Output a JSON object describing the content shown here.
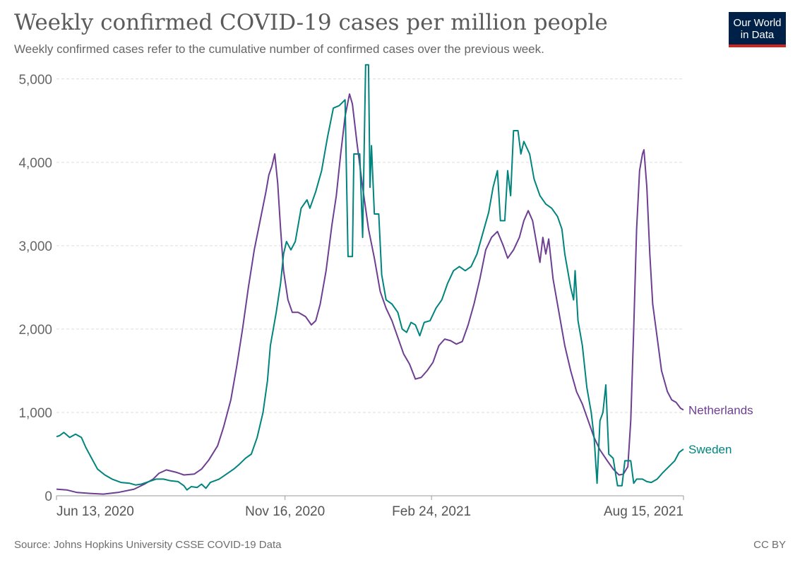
{
  "header": {
    "title": "Weekly confirmed COVID-19 cases per million people",
    "subtitle": "Weekly confirmed cases refer to the cumulative number of confirmed cases over the previous week."
  },
  "logo": {
    "line1": "Our World",
    "line2": "in Data",
    "bg": "#002147",
    "accent": "#ce261e"
  },
  "footer": {
    "source": "Source: Johns Hopkins University CSSE COVID-19 Data",
    "license": "CC BY"
  },
  "chart_data": {
    "type": "line",
    "title": "Weekly confirmed COVID-19 cases per million people",
    "x_range": [
      "2020-06-13",
      "2021-08-15"
    ],
    "ylim": [
      0,
      5100
    ],
    "yticks": [
      0,
      1000,
      2000,
      3000,
      4000,
      5000
    ],
    "ytick_labels": [
      "0",
      "1,000",
      "2,000",
      "3,000",
      "4,000",
      "5,000"
    ],
    "xticks": [
      "2020-06-13",
      "2020-11-16",
      "2021-02-24",
      "2021-08-15"
    ],
    "xtick_labels": [
      "Jun 13, 2020",
      "Nov 16, 2020",
      "Feb 24, 2021",
      "Aug 15, 2021"
    ],
    "grid": "horizontal dashed",
    "legend": "line-end labels",
    "series": [
      {
        "name": "Netherlands",
        "color": "#6d3e91",
        "points": [
          [
            "2020-06-13",
            80
          ],
          [
            "2020-06-20",
            70
          ],
          [
            "2020-06-27",
            40
          ],
          [
            "2020-07-05",
            30
          ],
          [
            "2020-07-15",
            20
          ],
          [
            "2020-07-25",
            40
          ],
          [
            "2020-08-05",
            80
          ],
          [
            "2020-08-12",
            140
          ],
          [
            "2020-08-18",
            200
          ],
          [
            "2020-08-22",
            270
          ],
          [
            "2020-08-27",
            310
          ],
          [
            "2020-09-03",
            280
          ],
          [
            "2020-09-08",
            250
          ],
          [
            "2020-09-15",
            260
          ],
          [
            "2020-09-20",
            320
          ],
          [
            "2020-09-25",
            430
          ],
          [
            "2020-10-01",
            600
          ],
          [
            "2020-10-05",
            820
          ],
          [
            "2020-10-10",
            1150
          ],
          [
            "2020-10-14",
            1550
          ],
          [
            "2020-10-18",
            2000
          ],
          [
            "2020-10-22",
            2500
          ],
          [
            "2020-10-26",
            2950
          ],
          [
            "2020-10-30",
            3300
          ],
          [
            "2020-11-03",
            3650
          ],
          [
            "2020-11-05",
            3850
          ],
          [
            "2020-11-07",
            3950
          ],
          [
            "2020-11-09",
            4100
          ],
          [
            "2020-11-11",
            3750
          ],
          [
            "2020-11-13",
            3200
          ],
          [
            "2020-11-15",
            2700
          ],
          [
            "2020-11-18",
            2350
          ],
          [
            "2020-11-21",
            2200
          ],
          [
            "2020-11-25",
            2200
          ],
          [
            "2020-11-30",
            2150
          ],
          [
            "2020-12-04",
            2050
          ],
          [
            "2020-12-07",
            2100
          ],
          [
            "2020-12-10",
            2300
          ],
          [
            "2020-12-14",
            2700
          ],
          [
            "2020-12-18",
            3250
          ],
          [
            "2020-12-21",
            3600
          ],
          [
            "2020-12-24",
            4100
          ],
          [
            "2020-12-27",
            4550
          ],
          [
            "2020-12-30",
            4820
          ],
          [
            "2021-01-01",
            4700
          ],
          [
            "2021-01-04",
            4250
          ],
          [
            "2021-01-08",
            3700
          ],
          [
            "2021-01-12",
            3200
          ],
          [
            "2021-01-16",
            2850
          ],
          [
            "2021-01-20",
            2450
          ],
          [
            "2021-01-24",
            2250
          ],
          [
            "2021-01-28",
            2100
          ],
          [
            "2021-02-01",
            1900
          ],
          [
            "2021-02-05",
            1700
          ],
          [
            "2021-02-09",
            1580
          ],
          [
            "2021-02-13",
            1400
          ],
          [
            "2021-02-17",
            1420
          ],
          [
            "2021-02-21",
            1500
          ],
          [
            "2021-02-25",
            1600
          ],
          [
            "2021-03-01",
            1800
          ],
          [
            "2021-03-05",
            1880
          ],
          [
            "2021-03-09",
            1860
          ],
          [
            "2021-03-13",
            1820
          ],
          [
            "2021-03-17",
            1850
          ],
          [
            "2021-03-21",
            2050
          ],
          [
            "2021-03-25",
            2300
          ],
          [
            "2021-03-29",
            2600
          ],
          [
            "2021-04-02",
            2950
          ],
          [
            "2021-04-06",
            3100
          ],
          [
            "2021-04-10",
            3170
          ],
          [
            "2021-04-14",
            3000
          ],
          [
            "2021-04-17",
            2850
          ],
          [
            "2021-04-21",
            2950
          ],
          [
            "2021-04-25",
            3100
          ],
          [
            "2021-04-28",
            3300
          ],
          [
            "2021-05-01",
            3420
          ],
          [
            "2021-05-04",
            3300
          ],
          [
            "2021-05-07",
            3000
          ],
          [
            "2021-05-09",
            2800
          ],
          [
            "2021-05-11",
            3100
          ],
          [
            "2021-05-13",
            2900
          ],
          [
            "2021-05-15",
            3080
          ],
          [
            "2021-05-18",
            2600
          ],
          [
            "2021-05-22",
            2200
          ],
          [
            "2021-05-26",
            1800
          ],
          [
            "2021-05-30",
            1500
          ],
          [
            "2021-06-03",
            1250
          ],
          [
            "2021-06-07",
            1100
          ],
          [
            "2021-06-11",
            900
          ],
          [
            "2021-06-15",
            700
          ],
          [
            "2021-06-19",
            550
          ],
          [
            "2021-06-24",
            420
          ],
          [
            "2021-06-28",
            320
          ],
          [
            "2021-07-02",
            250
          ],
          [
            "2021-07-05",
            260
          ],
          [
            "2021-07-08",
            350
          ],
          [
            "2021-07-10",
            900
          ],
          [
            "2021-07-12",
            2000
          ],
          [
            "2021-07-14",
            3200
          ],
          [
            "2021-07-16",
            3900
          ],
          [
            "2021-07-18",
            4100
          ],
          [
            "2021-07-19",
            4150
          ],
          [
            "2021-07-21",
            3700
          ],
          [
            "2021-07-23",
            2900
          ],
          [
            "2021-07-25",
            2300
          ],
          [
            "2021-07-28",
            1900
          ],
          [
            "2021-07-31",
            1500
          ],
          [
            "2021-08-04",
            1250
          ],
          [
            "2021-08-07",
            1150
          ],
          [
            "2021-08-10",
            1120
          ],
          [
            "2021-08-13",
            1050
          ],
          [
            "2021-08-15",
            1030
          ]
        ]
      },
      {
        "name": "Sweden",
        "color": "#00847e",
        "points": [
          [
            "2020-06-13",
            710
          ],
          [
            "2020-06-15",
            720
          ],
          [
            "2020-06-18",
            760
          ],
          [
            "2020-06-22",
            700
          ],
          [
            "2020-06-26",
            740
          ],
          [
            "2020-06-30",
            700
          ],
          [
            "2020-07-03",
            580
          ],
          [
            "2020-07-07",
            450
          ],
          [
            "2020-07-11",
            320
          ],
          [
            "2020-07-16",
            250
          ],
          [
            "2020-07-21",
            200
          ],
          [
            "2020-07-27",
            160
          ],
          [
            "2020-08-02",
            150
          ],
          [
            "2020-08-06",
            130
          ],
          [
            "2020-08-10",
            140
          ],
          [
            "2020-08-15",
            170
          ],
          [
            "2020-08-20",
            200
          ],
          [
            "2020-08-25",
            200
          ],
          [
            "2020-08-30",
            180
          ],
          [
            "2020-09-04",
            170
          ],
          [
            "2020-09-08",
            120
          ],
          [
            "2020-09-10",
            70
          ],
          [
            "2020-09-13",
            110
          ],
          [
            "2020-09-17",
            100
          ],
          [
            "2020-09-20",
            140
          ],
          [
            "2020-09-23",
            90
          ],
          [
            "2020-09-26",
            160
          ],
          [
            "2020-10-02",
            200
          ],
          [
            "2020-10-07",
            260
          ],
          [
            "2020-10-12",
            320
          ],
          [
            "2020-10-16",
            380
          ],
          [
            "2020-10-20",
            450
          ],
          [
            "2020-10-24",
            500
          ],
          [
            "2020-10-28",
            700
          ],
          [
            "2020-11-01",
            1000
          ],
          [
            "2020-11-04",
            1380
          ],
          [
            "2020-11-06",
            1800
          ],
          [
            "2020-11-10",
            2200
          ],
          [
            "2020-11-13",
            2550
          ],
          [
            "2020-11-15",
            2900
          ],
          [
            "2020-11-17",
            3050
          ],
          [
            "2020-11-20",
            2950
          ],
          [
            "2020-11-23",
            3050
          ],
          [
            "2020-11-27",
            3450
          ],
          [
            "2020-12-01",
            3550
          ],
          [
            "2020-12-03",
            3450
          ],
          [
            "2020-12-07",
            3650
          ],
          [
            "2020-12-11",
            3900
          ],
          [
            "2020-12-15",
            4300
          ],
          [
            "2020-12-19",
            4650
          ],
          [
            "2020-12-23",
            4680
          ],
          [
            "2020-12-27",
            4750
          ],
          [
            "2020-12-29",
            2870
          ],
          [
            "2021-01-01",
            2870
          ],
          [
            "2021-01-02",
            4100
          ],
          [
            "2021-01-06",
            4100
          ],
          [
            "2021-01-08",
            3100
          ],
          [
            "2021-01-10",
            5170
          ],
          [
            "2021-01-12",
            5170
          ],
          [
            "2021-01-13",
            3700
          ],
          [
            "2021-01-14",
            4200
          ],
          [
            "2021-01-16",
            3380
          ],
          [
            "2021-01-19",
            3380
          ],
          [
            "2021-01-21",
            2650
          ],
          [
            "2021-01-24",
            2350
          ],
          [
            "2021-01-28",
            2300
          ],
          [
            "2021-02-01",
            2200
          ],
          [
            "2021-02-04",
            2000
          ],
          [
            "2021-02-07",
            1960
          ],
          [
            "2021-02-10",
            2080
          ],
          [
            "2021-02-13",
            2050
          ],
          [
            "2021-02-16",
            1920
          ],
          [
            "2021-02-19",
            2080
          ],
          [
            "2021-02-23",
            2100
          ],
          [
            "2021-02-27",
            2250
          ],
          [
            "2021-03-03",
            2350
          ],
          [
            "2021-03-07",
            2550
          ],
          [
            "2021-03-11",
            2700
          ],
          [
            "2021-03-15",
            2750
          ],
          [
            "2021-03-19",
            2700
          ],
          [
            "2021-03-23",
            2750
          ],
          [
            "2021-03-27",
            2900
          ],
          [
            "2021-03-31",
            3150
          ],
          [
            "2021-04-04",
            3400
          ],
          [
            "2021-04-07",
            3700
          ],
          [
            "2021-04-10",
            3900
          ],
          [
            "2021-04-12",
            3300
          ],
          [
            "2021-04-15",
            3300
          ],
          [
            "2021-04-17",
            3900
          ],
          [
            "2021-04-19",
            3600
          ],
          [
            "2021-04-21",
            4380
          ],
          [
            "2021-04-24",
            4380
          ],
          [
            "2021-04-26",
            4100
          ],
          [
            "2021-04-28",
            4250
          ],
          [
            "2021-05-02",
            4100
          ],
          [
            "2021-05-05",
            3800
          ],
          [
            "2021-05-09",
            3600
          ],
          [
            "2021-05-13",
            3500
          ],
          [
            "2021-05-17",
            3450
          ],
          [
            "2021-05-21",
            3350
          ],
          [
            "2021-05-24",
            3200
          ],
          [
            "2021-05-26",
            2900
          ],
          [
            "2021-05-30",
            2500
          ],
          [
            "2021-06-01",
            2350
          ],
          [
            "2021-06-02",
            2700
          ],
          [
            "2021-06-04",
            2100
          ],
          [
            "2021-06-07",
            1800
          ],
          [
            "2021-06-10",
            1300
          ],
          [
            "2021-06-13",
            1000
          ],
          [
            "2021-06-15",
            700
          ],
          [
            "2021-06-17",
            150
          ],
          [
            "2021-06-19",
            900
          ],
          [
            "2021-06-21",
            1000
          ],
          [
            "2021-06-23",
            1330
          ],
          [
            "2021-06-25",
            500
          ],
          [
            "2021-06-28",
            450
          ],
          [
            "2021-07-01",
            120
          ],
          [
            "2021-07-04",
            120
          ],
          [
            "2021-07-06",
            420
          ],
          [
            "2021-07-10",
            420
          ],
          [
            "2021-07-12",
            150
          ],
          [
            "2021-07-14",
            200
          ],
          [
            "2021-07-18",
            200
          ],
          [
            "2021-07-21",
            170
          ],
          [
            "2021-07-24",
            160
          ],
          [
            "2021-07-28",
            200
          ],
          [
            "2021-08-01",
            280
          ],
          [
            "2021-08-05",
            350
          ],
          [
            "2021-08-09",
            420
          ],
          [
            "2021-08-12",
            520
          ],
          [
            "2021-08-15",
            560
          ]
        ]
      }
    ]
  }
}
